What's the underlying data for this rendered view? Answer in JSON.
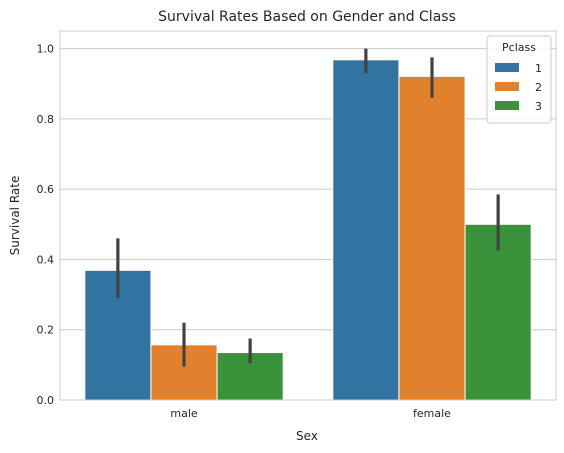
{
  "chart_data": {
    "type": "bar",
    "title": "Survival Rates Based on Gender and Class",
    "xlabel": "Sex",
    "ylabel": "Survival Rate",
    "categories": [
      "male",
      "female"
    ],
    "ylim": [
      0,
      1.05
    ],
    "yticks": [
      0.0,
      0.2,
      0.4,
      0.6,
      0.8,
      1.0
    ],
    "ytick_labels": [
      "0.0",
      "0.2",
      "0.4",
      "0.6",
      "0.8",
      "1.0"
    ],
    "grid": true,
    "legend": {
      "title": "Pclass",
      "placement": "top-right"
    },
    "series": [
      {
        "name": "1",
        "color": "#3274a1",
        "values": [
          0.369,
          0.968
        ],
        "ci_low": [
          0.29,
          0.93
        ],
        "ci_high": [
          0.46,
          1.0
        ]
      },
      {
        "name": "2",
        "color": "#e1812c",
        "values": [
          0.157,
          0.921
        ],
        "ci_low": [
          0.095,
          0.86
        ],
        "ci_high": [
          0.22,
          0.975
        ]
      },
      {
        "name": "3",
        "color": "#3a923a",
        "values": [
          0.135,
          0.5
        ],
        "ci_low": [
          0.105,
          0.425
        ],
        "ci_high": [
          0.175,
          0.585
        ]
      }
    ]
  }
}
